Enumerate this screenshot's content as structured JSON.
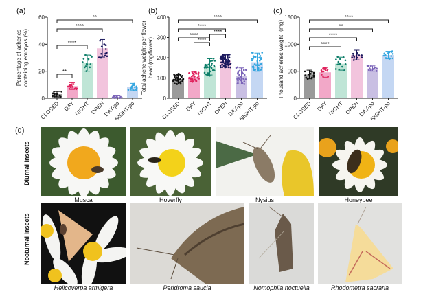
{
  "figure": {
    "panel_labels": [
      "(a)",
      "(b)",
      "(c)",
      "(d)"
    ],
    "row_labels": {
      "diurnal": "Diurnal  insects",
      "nocturnal": "Nocturnal insects"
    },
    "photos": {
      "diurnal": [
        {
          "caption": "Musca"
        },
        {
          "caption": "Hoverfly"
        },
        {
          "caption": "Nysius"
        },
        {
          "caption": "Honeybee"
        }
      ],
      "nocturnal": [
        {
          "caption": "Helicoverpa  armigera"
        },
        {
          "caption": "Peridroma   saucia"
        },
        {
          "caption": "Nomophila noctuella"
        },
        {
          "caption": "Rhodometra  sacraria"
        }
      ]
    }
  },
  "chart_data": [
    {
      "type": "bar",
      "panel": "(a)",
      "ylabel": "Percentage of achenes containing embryos (%)",
      "ylabel_lines": [
        "Percentage of achenes",
        "containing embryos (%)"
      ],
      "categories": [
        "CLOSED",
        "DAY",
        "NIGHT",
        "OPEN",
        "DAY-po",
        "NIGHT-po"
      ],
      "values": [
        3,
        9,
        26,
        37,
        1,
        8.5
      ],
      "errors": [
        2,
        2.5,
        6,
        6.5,
        0.8,
        2.5
      ],
      "ylim": [
        0,
        60
      ],
      "yticks": [
        0,
        20,
        40,
        60
      ],
      "colors": [
        "#9a9a9a",
        "#f2a8c8",
        "#bfe5d6",
        "#f2c4dd",
        "#c9bfe3",
        "#c4d7f3"
      ],
      "dot_colors": [
        "#111111",
        "#e0245e",
        "#0f7f6a",
        "#1c1a5e",
        "#7b64b8",
        "#36a7e0"
      ],
      "comparisons": [
        {
          "from": 0,
          "to": 1,
          "label": "**"
        },
        {
          "from": 0,
          "to": 2,
          "label": "****"
        },
        {
          "from": 0,
          "to": 3,
          "label": "****"
        },
        {
          "from": 0,
          "to": 5,
          "label": "**"
        }
      ]
    },
    {
      "type": "bar",
      "panel": "(b)",
      "ylabel": "Total achene weight per flower head (mg/flower)",
      "ylabel_lines": [
        "Total achene weight per flower",
        "head (mg/flower)"
      ],
      "categories": [
        "CLOSED",
        "DAY",
        "NIGHT",
        "OPEN",
        "DAY-po",
        "NIGHT-po"
      ],
      "values": [
        95,
        105,
        155,
        185,
        110,
        178
      ],
      "errors": [
        25,
        25,
        40,
        30,
        40,
        45
      ],
      "ylim": [
        0,
        400
      ],
      "yticks": [
        0,
        100,
        200,
        300,
        400
      ],
      "colors": [
        "#9a9a9a",
        "#f2a8c8",
        "#bfe5d6",
        "#f2c4dd",
        "#c9bfe3",
        "#c4d7f3"
      ],
      "dot_colors": [
        "#111111",
        "#e0245e",
        "#0f7f6a",
        "#1c1a5e",
        "#7b64b8",
        "#36a7e0"
      ],
      "comparisons": [
        {
          "from": 1,
          "to": 2,
          "label": "****"
        },
        {
          "from": 2,
          "to": 3,
          "label": "****"
        },
        {
          "from": 0,
          "to": 2,
          "label": "****"
        },
        {
          "from": 0,
          "to": 3,
          "label": "****"
        },
        {
          "from": 0,
          "to": 5,
          "label": "****"
        }
      ]
    },
    {
      "type": "bar",
      "panel": "(c)",
      "ylabel": "Thousand achenes weight (mg)",
      "ylabel_lines": [
        "Thousand achenes weight（mg）"
      ],
      "categories": [
        "CLOSED",
        "DAY",
        "NIGHT",
        "OPEN",
        "DAY-po",
        "NIGHT-po"
      ],
      "values": [
        440,
        480,
        640,
        800,
        550,
        800
      ],
      "errors": [
        80,
        90,
        120,
        90,
        50,
        70
      ],
      "ylim": [
        0,
        1500
      ],
      "yticks": [
        0,
        500,
        1000,
        1500
      ],
      "colors": [
        "#9a9a9a",
        "#f2a8c8",
        "#bfe5d6",
        "#f2c4dd",
        "#c9bfe3",
        "#c4d7f3"
      ],
      "dot_colors": [
        "#111111",
        "#e0245e",
        "#0f7f6a",
        "#1c1a5e",
        "#7b64b8",
        "#36a7e0"
      ],
      "comparisons": [
        {
          "from": 0,
          "to": 2,
          "label": "****"
        },
        {
          "from": 0,
          "to": 3,
          "label": "****"
        },
        {
          "from": 0,
          "to": 4,
          "label": "**"
        },
        {
          "from": 0,
          "to": 5,
          "label": "****"
        }
      ]
    }
  ]
}
